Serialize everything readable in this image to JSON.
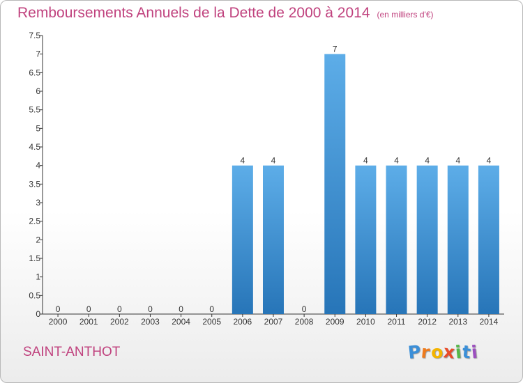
{
  "chart_data": {
    "type": "bar",
    "title": "Remboursements Annuels de la Dette de 2000 à 2014",
    "subtitle": "(en milliers d'€)",
    "categories": [
      "2000",
      "2001",
      "2002",
      "2003",
      "2004",
      "2005",
      "2006",
      "2007",
      "2008",
      "2009",
      "2010",
      "2011",
      "2012",
      "2013",
      "2014"
    ],
    "values": [
      0,
      0,
      0,
      0,
      0,
      0,
      4,
      4,
      0,
      7,
      4,
      4,
      4,
      4,
      4
    ],
    "value_labels": [
      "0",
      "0",
      "0",
      "0",
      "0",
      "0",
      "4",
      "4",
      "0",
      "7",
      "4",
      "4",
      "4",
      "4",
      "4"
    ],
    "ylim": [
      0,
      7.5
    ],
    "yticks": [
      0,
      0.5,
      1,
      1.5,
      2,
      2.5,
      3,
      3.5,
      4,
      4.5,
      5,
      5.5,
      6,
      6.5,
      7,
      7.5
    ],
    "ytick_labels": [
      "0",
      "0.5",
      "1",
      "1.5",
      "2",
      "2.5",
      "3",
      "3.5",
      "4",
      "4.5",
      "5",
      "5.5",
      "6",
      "6.5",
      "7",
      "7.5"
    ],
    "grid": false,
    "colors": {
      "bar_top": "#5dade8",
      "bar_bottom": "#2775b8",
      "title": "#c0427e",
      "axis": "#333333"
    }
  },
  "location": "SAINT-ANTHOT",
  "brand": {
    "letters": [
      "P",
      "r",
      "o",
      "x",
      "i",
      "t",
      "i"
    ],
    "colors": [
      "#3b8fd8",
      "#ee7b1e",
      "#f4b400",
      "#e84b2a",
      "#55b848",
      "#3b8fd8",
      "#9c4fbf"
    ]
  }
}
